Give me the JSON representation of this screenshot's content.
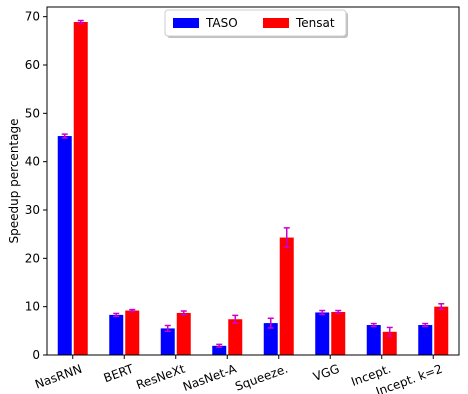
{
  "chart_data": {
    "type": "bar",
    "title": "",
    "xlabel": "",
    "ylabel": "Speedup percentage",
    "ylim": [
      0,
      72
    ],
    "yticks": [
      0,
      10,
      20,
      30,
      40,
      50,
      60,
      70
    ],
    "grid": false,
    "legend_position": "top-center",
    "categories": [
      "NasRNN",
      "BERT",
      "ResNeXt",
      "NasNet-A",
      "Squeeze.",
      "VGG",
      "Incept.",
      "Incept. k=2"
    ],
    "series": [
      {
        "name": "TASO",
        "color": "#0000ff",
        "values": [
          45.3,
          8.3,
          5.5,
          1.9,
          6.6,
          8.8,
          6.2,
          6.2
        ],
        "err_low": [
          0.4,
          0.3,
          0.6,
          0.3,
          1.0,
          0.4,
          0.3,
          0.3
        ],
        "err_high": [
          0.4,
          0.3,
          0.6,
          0.3,
          1.0,
          0.4,
          0.3,
          0.3
        ]
      },
      {
        "name": "Tensat",
        "color": "#ff0000",
        "values": [
          68.9,
          9.2,
          8.7,
          7.4,
          24.3,
          8.9,
          4.8,
          10.0
        ],
        "err_low": [
          0.3,
          0.2,
          0.4,
          0.8,
          2.0,
          0.3,
          0.9,
          0.6
        ],
        "err_high": [
          0.3,
          0.2,
          0.4,
          0.8,
          2.0,
          0.3,
          0.9,
          0.6
        ]
      }
    ],
    "errorbar_color": "#cc00cc"
  }
}
